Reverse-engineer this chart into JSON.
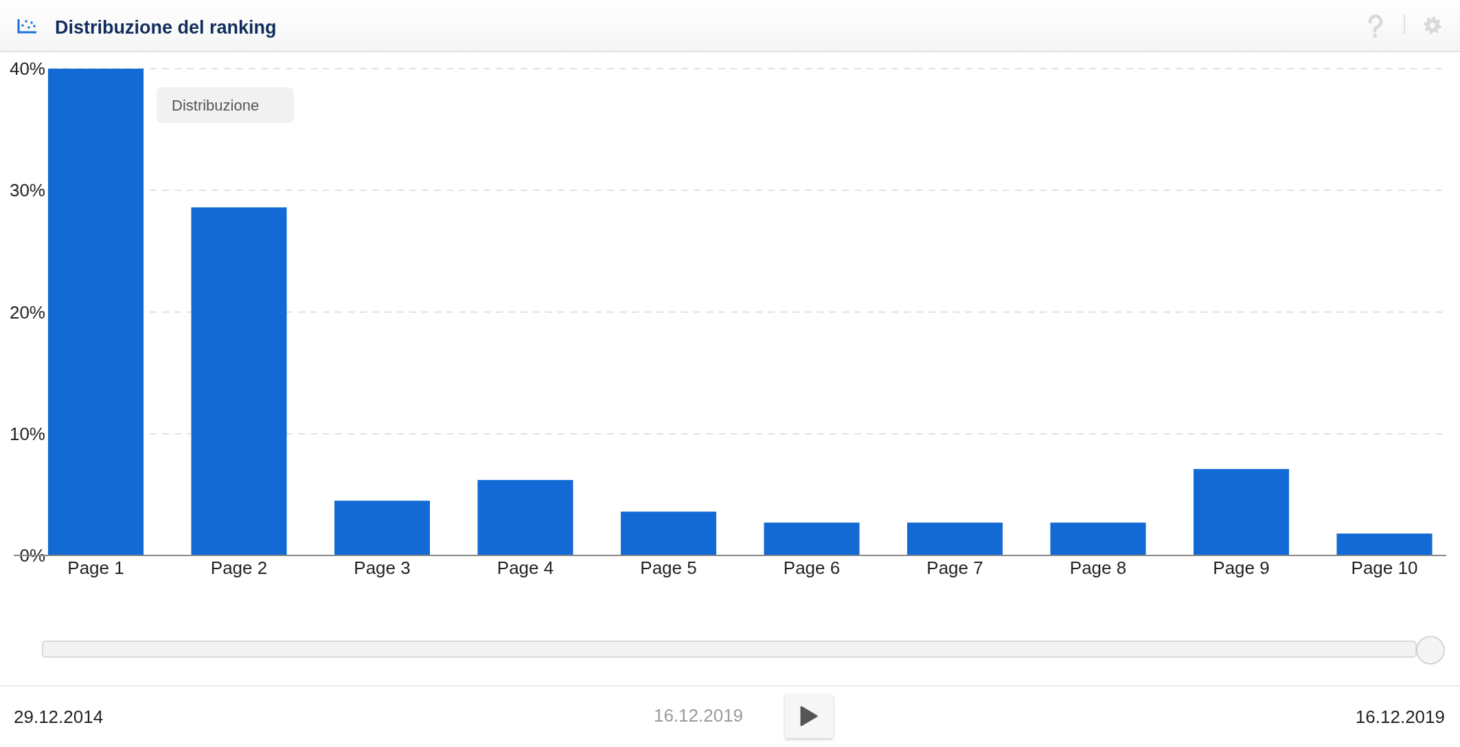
{
  "chart_data": {
    "type": "bar",
    "title": "Distribuzione del ranking",
    "categories": [
      "Page 1",
      "Page 2",
      "Page 3",
      "Page 4",
      "Page 5",
      "Page 6",
      "Page 7",
      "Page 8",
      "Page 9",
      "Page 10"
    ],
    "values": [
      40,
      28.6,
      4.5,
      6.2,
      3.6,
      2.7,
      2.7,
      2.7,
      7.1,
      1.8
    ],
    "color": "#146ad4",
    "ylim": [
      0,
      40
    ],
    "yticks": [
      {
        "value": 0,
        "label": "0%"
      },
      {
        "value": 10,
        "label": "10%"
      },
      {
        "value": 20,
        "label": "20%"
      },
      {
        "value": 30,
        "label": "30%"
      },
      {
        "value": 40,
        "label": "40%"
      }
    ],
    "grid": "y",
    "annotations": [
      "Distribuzione",
      "29.12.2014",
      "16.12.2019",
      "16.12.2019"
    ]
  }
}
